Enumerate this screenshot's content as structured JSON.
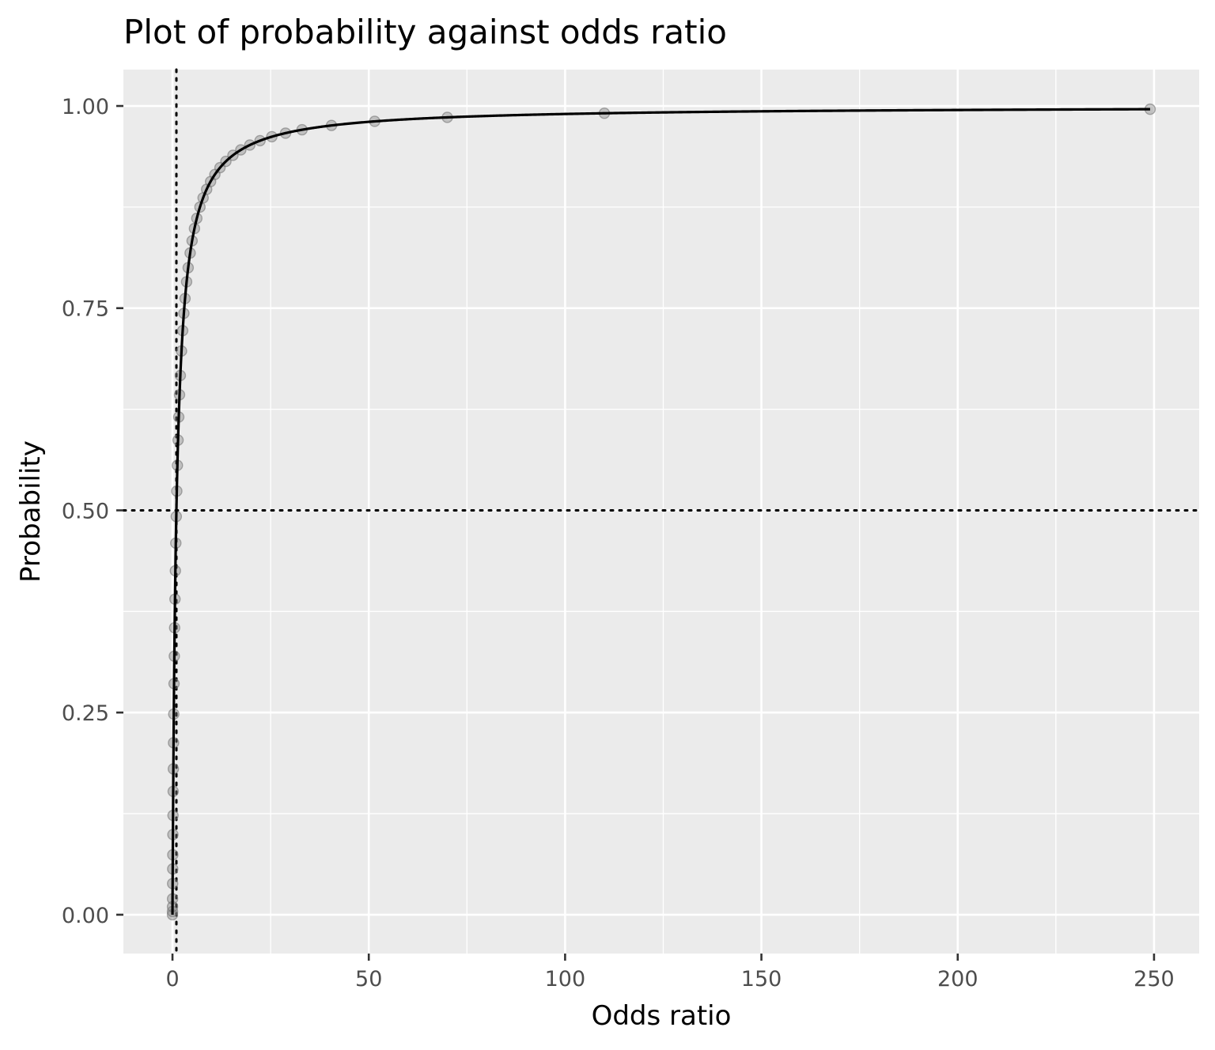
{
  "chart_data": {
    "type": "scatter",
    "title": "Plot of probability against odds ratio",
    "xlabel": "Odds ratio",
    "ylabel": "Probability",
    "xlim": [
      -12.5,
      261.5
    ],
    "ylim": [
      -0.048,
      1.045
    ],
    "x_ticks": [
      0,
      50,
      100,
      150,
      200,
      250
    ],
    "x_tick_labels": [
      "0",
      "50",
      "100",
      "150",
      "200",
      "250"
    ],
    "y_ticks": [
      0,
      0.25,
      0.5,
      0.75,
      1
    ],
    "y_tick_labels": [
      "0.00",
      "0.25",
      "0.50",
      "0.75",
      "1.00"
    ],
    "grid": true,
    "background": "#ebebeb",
    "grid_color": "#ffffff",
    "reference_lines": [
      {
        "orientation": "vertical",
        "value": 1,
        "style": "dotted"
      },
      {
        "orientation": "horizontal",
        "value": 0.5,
        "style": "dotted"
      }
    ],
    "curve": {
      "function": "p = x / (1 + x)",
      "x_range": [
        0,
        249
      ],
      "color": "#000000"
    },
    "points": {
      "color": "#808080",
      "x": [
        0,
        0.004,
        0.01,
        0.02,
        0.04,
        0.06,
        0.08,
        0.11,
        0.14,
        0.18,
        0.22,
        0.27,
        0.33,
        0.4,
        0.47,
        0.55,
        0.64,
        0.74,
        0.85,
        0.97,
        1.1,
        1.25,
        1.42,
        1.6,
        1.8,
        2.0,
        2.3,
        2.6,
        2.9,
        3.2,
        3.6,
        4.0,
        4.5,
        5.0,
        5.6,
        6.2,
        7.0,
        7.8,
        8.7,
        9.7,
        10.8,
        12.1,
        13.6,
        15.4,
        17.4,
        19.7,
        22.3,
        25.3,
        28.8,
        33.0,
        40.5,
        51.5,
        70.0,
        110.0,
        249.0
      ],
      "y": [
        0,
        0.004,
        0.0099,
        0.0196,
        0.0385,
        0.0566,
        0.0741,
        0.0991,
        0.1228,
        0.1525,
        0.1803,
        0.2126,
        0.2481,
        0.2857,
        0.3197,
        0.3548,
        0.3902,
        0.4253,
        0.4595,
        0.4924,
        0.5238,
        0.5556,
        0.5868,
        0.6154,
        0.6429,
        0.6667,
        0.697,
        0.7222,
        0.7436,
        0.7619,
        0.7826,
        0.8,
        0.8182,
        0.8333,
        0.8485,
        0.8611,
        0.875,
        0.8864,
        0.8969,
        0.9065,
        0.9153,
        0.9237,
        0.9315,
        0.939,
        0.9457,
        0.9517,
        0.9571,
        0.962,
        0.9664,
        0.9706,
        0.9759,
        0.981,
        0.9859,
        0.991,
        0.996
      ]
    }
  }
}
